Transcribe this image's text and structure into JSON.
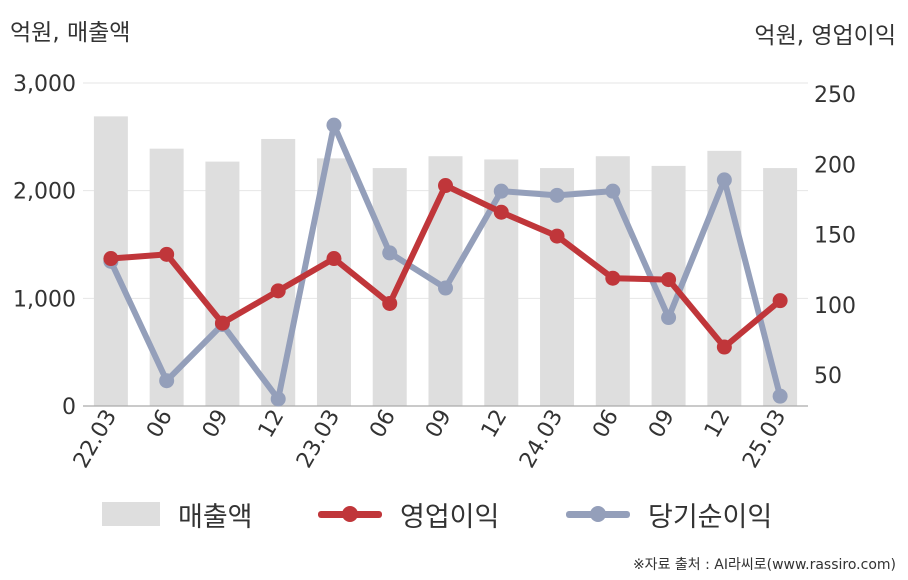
{
  "chart_data": {
    "type": "bar+line",
    "units": {
      "left": "억원, 매출액",
      "right": "억원, 영업이익"
    },
    "categories": [
      "22.03",
      "06",
      "09",
      "12",
      "23.03",
      "06",
      "09",
      "12",
      "24.03",
      "06",
      "09",
      "12",
      "25.03"
    ],
    "y_left": {
      "min": 0,
      "max": 3000,
      "ticks": [
        0,
        1000,
        2000,
        3000
      ],
      "tick_labels": [
        "0",
        "1,000",
        "2,000",
        "3,000"
      ]
    },
    "y_right": {
      "min": 28,
      "max": 258,
      "ticks": [
        50,
        100,
        150,
        200,
        250
      ],
      "tick_labels": [
        "50",
        "100",
        "150",
        "200",
        "250"
      ]
    },
    "grid": true,
    "legend_position": "bottom",
    "series": [
      {
        "name": "매출액",
        "type": "bar",
        "axis": "left",
        "color": "#dedede",
        "values": [
          2690,
          2390,
          2270,
          2480,
          2300,
          2210,
          2320,
          2290,
          2210,
          2320,
          2230,
          2370,
          2210
        ]
      },
      {
        "name": "영업이익",
        "type": "line",
        "axis": "right",
        "color": "#c0363a",
        "values": [
          133,
          136,
          87,
          110,
          133,
          101,
          185,
          166,
          149,
          119,
          118,
          70,
          103
        ]
      },
      {
        "name": "당기순이익",
        "type": "line",
        "axis": "right",
        "color": "#949fba",
        "values": [
          131,
          46,
          86,
          33,
          228,
          137,
          112,
          181,
          178,
          181,
          91,
          189,
          35
        ]
      }
    ]
  },
  "source": "※자료 출처 : AI라씨로(www.rassiro.com)"
}
